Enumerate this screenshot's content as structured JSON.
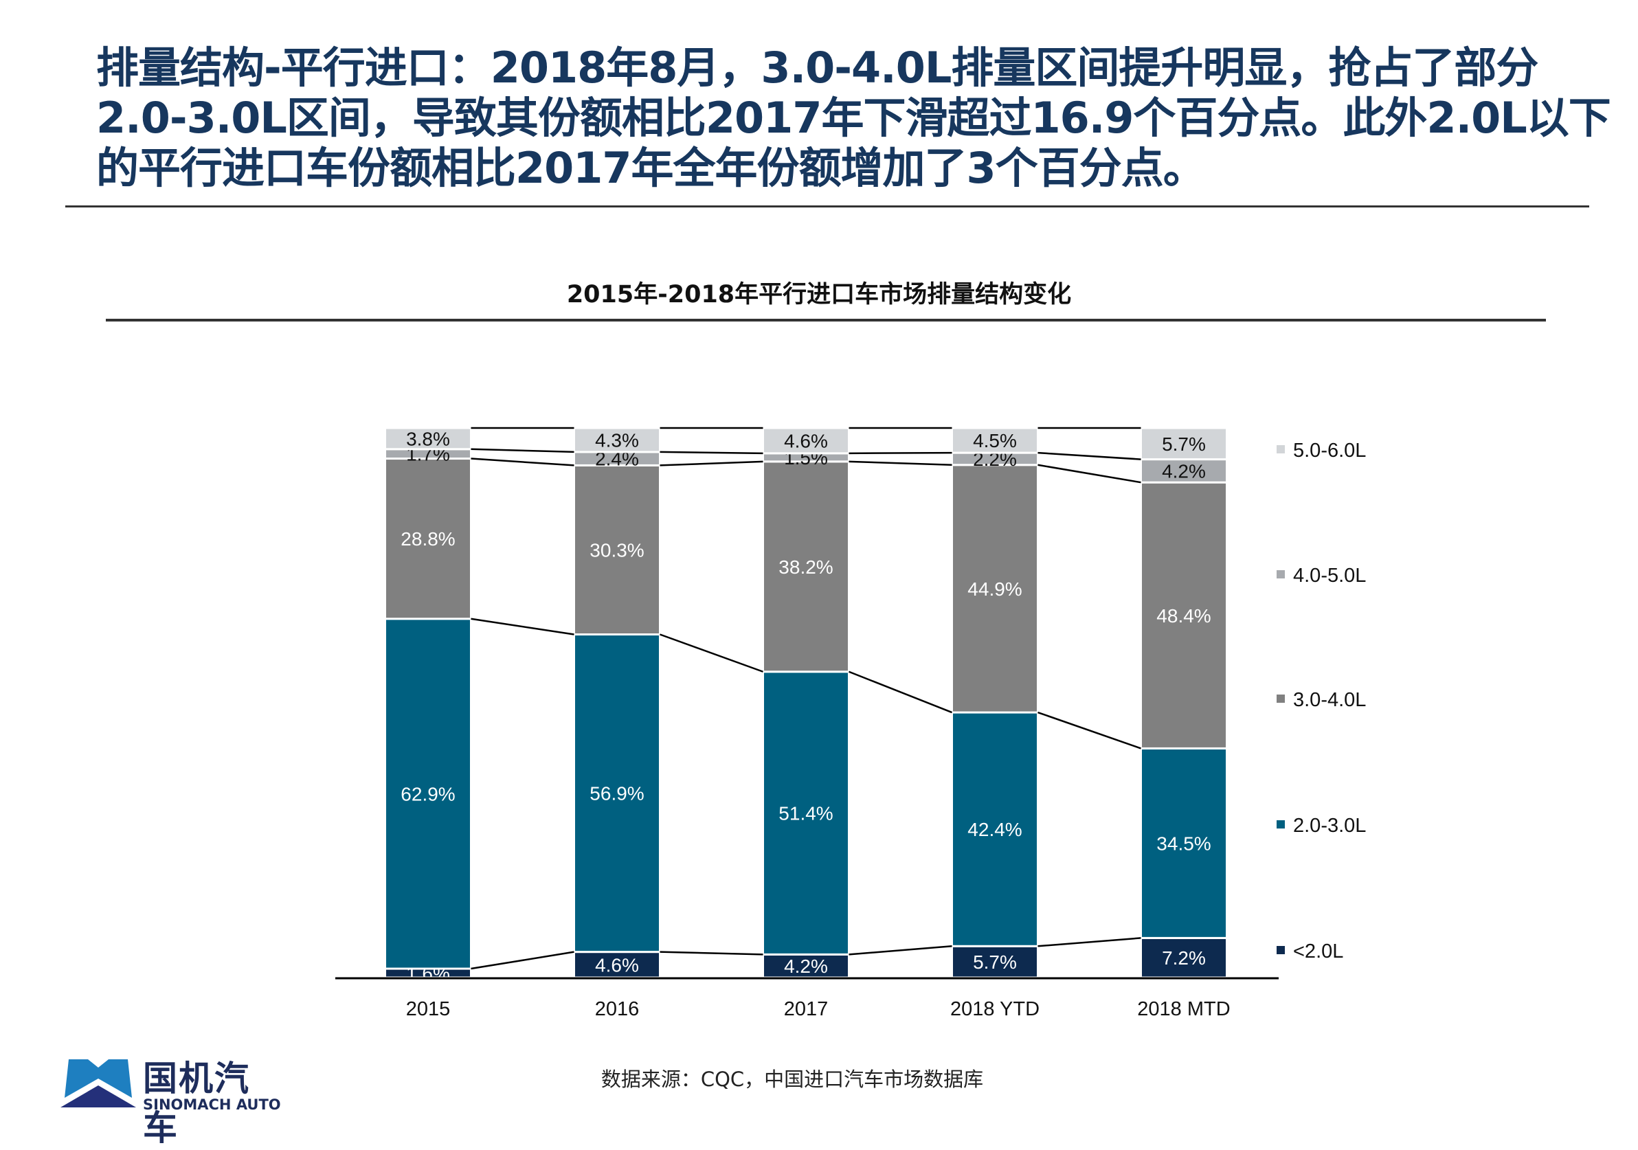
{
  "headline": {
    "lines": [
      "排量结构-平行进口：2018年8月，3.0-4.0L排量区间提升明显，抢占了部分",
      "2.0-3.0L区间，导致其份额相比2017年下滑超过16.9个百分点。此外2.0L以下",
      "的平行进口车份额相比2017年全年份额增加了3个百分点。"
    ]
  },
  "chart_data": {
    "type": "bar",
    "stacked": true,
    "percent_stacked": true,
    "title": "2015年-2018年平行进口车市场排量结构变化",
    "categories": [
      "2015",
      "2016",
      "2017",
      "2018 YTD",
      "2018 MTD"
    ],
    "series": [
      {
        "name": "<2.0L",
        "values": [
          1.6,
          4.6,
          4.2,
          5.7,
          7.2
        ],
        "color": "#0d2a4f"
      },
      {
        "name": "2.0-3.0L",
        "values": [
          62.9,
          56.9,
          51.4,
          42.4,
          34.5
        ],
        "color": "#006080"
      },
      {
        "name": "3.0-4.0L",
        "values": [
          28.8,
          30.3,
          38.2,
          44.9,
          48.4
        ],
        "color": "#808080"
      },
      {
        "name": "4.0-5.0L",
        "values": [
          1.7,
          2.4,
          1.5,
          2.2,
          4.2
        ],
        "color": "#a7aaae"
      },
      {
        "name": "5.0-6.0L",
        "values": [
          3.8,
          4.3,
          4.6,
          4.5,
          5.7
        ],
        "color": "#d2d5d8"
      }
    ],
    "value_suffix": "%",
    "legend_position": "right",
    "series_lines": true,
    "grid": false
  },
  "source": "数据来源：CQC，中国进口汽车市场数据库",
  "logo": {
    "cn": "国机汽车",
    "en": "SINOMACH AUTO"
  }
}
